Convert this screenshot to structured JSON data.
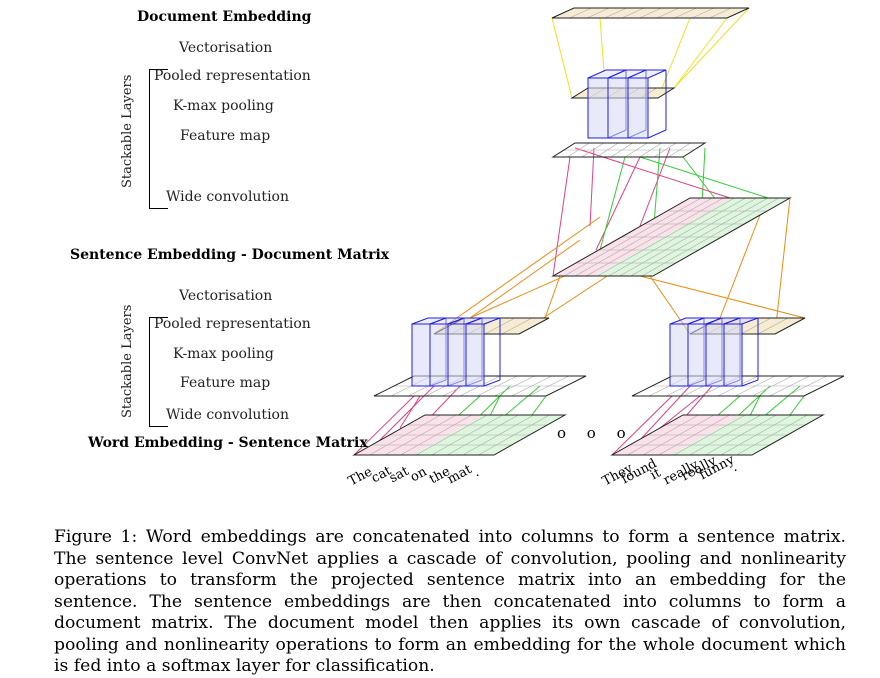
{
  "labels": {
    "document_embedding": "Document Embedding",
    "vectorisation_top": "Vectorisation",
    "pooled_top": "Pooled representation",
    "kmax_top": "K-max pooling",
    "feature_map_top": "Feature map",
    "wide_conv_top": "Wide convolution",
    "stackable_top": "Stackable Layers",
    "sentence_embedding": "Sentence Embedding - Document Matrix",
    "vectorisation_bottom": "Vectorisation",
    "pooled_bottom": "Pooled representation",
    "kmax_bottom": "K-max pooling",
    "feature_map_bottom": "Feature map",
    "wide_conv_bottom": "Wide convolution",
    "stackable_bottom": "Stackable Layers",
    "word_embedding": "Word Embedding - Sentence Matrix"
  },
  "sentence1": [
    "The",
    "cat",
    "sat",
    "on",
    "the",
    "mat",
    "."
  ],
  "sentence2": [
    "They",
    "found",
    "it",
    "really",
    "really",
    "funny",
    "."
  ],
  "ellipsis": "o o o",
  "caption": "Figure 1: Word embeddings are concatenated into columns to form a sentence matrix. The sentence level ConvNet applies a cascade of convolution, pooling and nonlinearity operations to transform the projected sentence matrix into an embedding for the sentence. The sentence embeddings are then concatenated into columns to form a document matrix. The document model then applies its own cascade of convolution, pooling and nonlinearity operations to form an embedding for the whole document which is fed into a softmax layer for classification.",
  "colors": {
    "pink": "#e0408a",
    "green": "#33cc33",
    "blue": "#1f1fe0",
    "orange": "#ee8a12",
    "yellow": "#f2e020",
    "pink_fill": "#fbe1ea",
    "green_fill": "#ddf6dd",
    "blue_fill": "#d6d8f6",
    "tan_fill": "#f6ecd2"
  }
}
